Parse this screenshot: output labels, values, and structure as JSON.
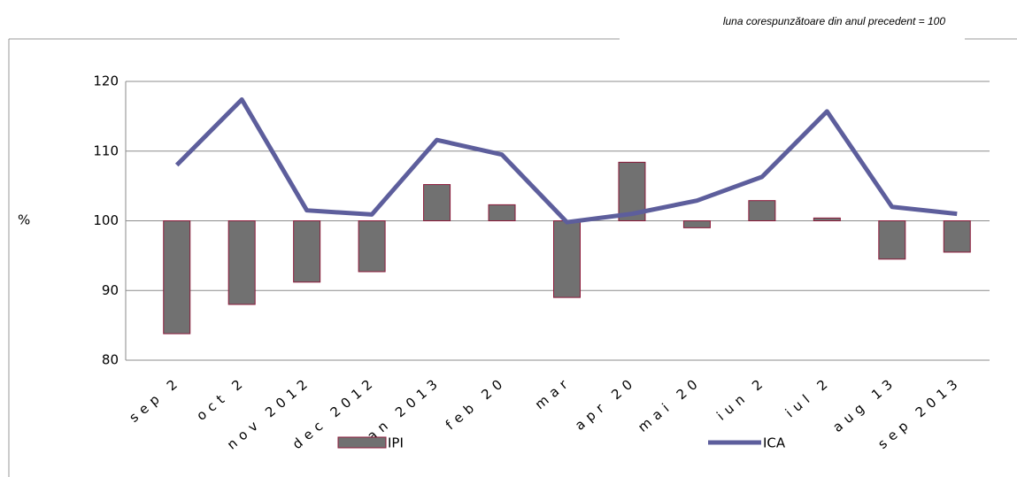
{
  "chart_data": {
    "type": "combo",
    "subtitle": "luna corespunzătoare din anul precedent = 100",
    "y_label": "%",
    "categories": [
      "sep 2",
      "oct 2",
      "nov 2012",
      "dec 2012",
      "ian 2013",
      "feb 20",
      "mar",
      "apr 20",
      "mai 20",
      "iun 2",
      "iul 2",
      "aug 13",
      "sep 2013"
    ],
    "series": [
      {
        "name": "IPI",
        "type": "bar",
        "color": "#717171",
        "edge_color": "#8b1a3a",
        "values": [
          83.8,
          88,
          91.2,
          92.7,
          105.2,
          102.3,
          89,
          108.4,
          99,
          102.9,
          100.4,
          94.5,
          95.5
        ]
      },
      {
        "name": "ICA",
        "type": "line",
        "color": "#5d5e9c",
        "values": [
          108,
          117.4,
          101.5,
          100.9,
          111.6,
          109.5,
          99.8,
          101,
          102.9,
          106.3,
          115.7,
          102,
          101
        ]
      }
    ],
    "bar_baseline": 100,
    "ylim": [
      80,
      120
    ],
    "yticks": [
      80,
      90,
      100,
      110,
      120
    ],
    "grid": true
  }
}
